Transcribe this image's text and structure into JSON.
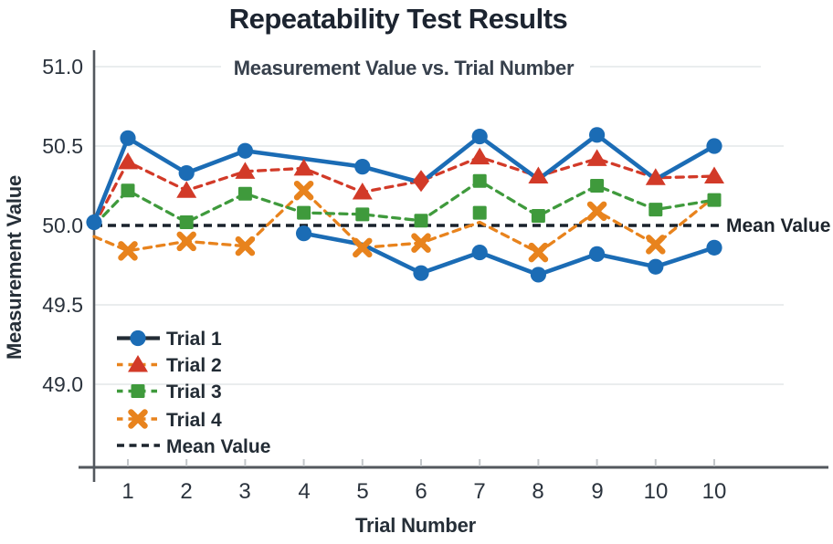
{
  "chart_data": {
    "type": "line",
    "title": "Repeatability Test Results",
    "subtitle": "Measurement Value vs. Trial Number",
    "xlabel": "Trial Number",
    "ylabel": "Measurement Value",
    "x_tick_labels": [
      "1",
      "2",
      "3",
      "4",
      "5",
      "6",
      "7",
      "8",
      "9",
      "10",
      "10"
    ],
    "y_tick_labels": [
      "51.0",
      "50.5",
      "50.0",
      "49.5",
      "49.0"
    ],
    "y_ticks": [
      51.0,
      50.5,
      50.0,
      49.5,
      49.0
    ],
    "ylim": [
      48.75,
      51.05
    ],
    "grid": "horizontal-light",
    "mean_value": 50.0,
    "mean_label": "Mean Value",
    "series": [
      {
        "name": "Trial 4",
        "color": "#e8831d",
        "line": "dashed",
        "marker": "x",
        "points": [
          {
            "x": 0,
            "y": 49.93,
            "marker": false
          },
          {
            "x": 1,
            "y": 49.84
          },
          {
            "x": 2,
            "y": 49.9
          },
          {
            "x": 3,
            "y": 49.87
          },
          {
            "x": 4,
            "y": 50.22
          },
          {
            "x": 5,
            "y": 49.86
          },
          {
            "x": 6,
            "y": 49.89
          },
          {
            "x": 7,
            "y": 50.02,
            "marker": false
          },
          {
            "x": 8,
            "y": 49.83
          },
          {
            "x": 9,
            "y": 50.09
          },
          {
            "x": 10,
            "y": 49.88
          },
          {
            "x": 11,
            "y": 50.18,
            "marker": false
          }
        ]
      },
      {
        "name": "Trial 3",
        "color": "#3f9a3c",
        "line": "dashed",
        "marker": "square",
        "points": [
          {
            "x": 0,
            "y": 50.0,
            "marker": false
          },
          {
            "x": 1,
            "y": 50.22
          },
          {
            "x": 2,
            "y": 50.02
          },
          {
            "x": 3,
            "y": 50.2
          },
          {
            "x": 4,
            "y": 50.08
          },
          {
            "x": 5,
            "y": 50.07
          },
          {
            "x": 6,
            "y": 50.03
          },
          {
            "x": 7,
            "y": 50.28
          },
          {
            "x": 8,
            "y": 50.06
          },
          {
            "x": 9,
            "y": 50.25
          },
          {
            "x": 10,
            "y": 50.1
          },
          {
            "x": 11,
            "y": 50.16
          }
        ]
      },
      {
        "name": "Trial 2",
        "color": "#d23a28",
        "line": "dashed",
        "marker": "triangle",
        "points": [
          {
            "x": 0,
            "y": 50.0,
            "marker": false
          },
          {
            "x": 1,
            "y": 50.4
          },
          {
            "x": 2,
            "y": 50.22
          },
          {
            "x": 3,
            "y": 50.34
          },
          {
            "x": 4,
            "y": 50.36
          },
          {
            "x": 5,
            "y": 50.21
          },
          {
            "x": 6,
            "y": 50.28,
            "marker": "diamond"
          },
          {
            "x": 7,
            "y": 50.43
          },
          {
            "x": 8,
            "y": 50.31
          },
          {
            "x": 9,
            "y": 50.42
          },
          {
            "x": 10,
            "y": 50.3
          },
          {
            "x": 11,
            "y": 50.31
          }
        ]
      },
      {
        "name": "Trial 1 lower",
        "color": "#1b6cb5",
        "line": "solid",
        "marker": "circle",
        "points": [
          {
            "x": 4,
            "y": 49.95
          },
          {
            "x": 5,
            "y": 49.88,
            "marker": false
          },
          {
            "x": 6,
            "y": 49.7
          },
          {
            "x": 7,
            "y": 49.83
          },
          {
            "x": 8,
            "y": 49.69
          },
          {
            "x": 9,
            "y": 49.82
          },
          {
            "x": 10,
            "y": 49.74
          },
          {
            "x": 11,
            "y": 49.86
          }
        ]
      },
      {
        "name": "Trial 1 upper",
        "color": "#1b6cb5",
        "line": "solid",
        "marker": "circle",
        "points": [
          {
            "x": 0,
            "y": 50.02
          },
          {
            "x": 1,
            "y": 50.55
          },
          {
            "x": 2,
            "y": 50.33
          },
          {
            "x": 3,
            "y": 50.47
          },
          {
            "x": 5,
            "y": 50.37
          },
          {
            "x": 6,
            "y": 50.27,
            "marker": false
          },
          {
            "x": 7,
            "y": 50.56
          },
          {
            "x": 8,
            "y": 50.29,
            "marker": false
          },
          {
            "x": 9,
            "y": 50.57
          },
          {
            "x": 10,
            "y": 50.29,
            "marker": false
          },
          {
            "x": 11,
            "y": 50.5
          }
        ]
      }
    ],
    "extra_markers": [
      {
        "x": 7,
        "y": 50.08,
        "color": "#3f9a3c",
        "marker": "square"
      }
    ]
  },
  "legend": {
    "items": [
      {
        "label": "Trial 1",
        "line": "solid",
        "line_color": "#232c35",
        "marker": "circle",
        "marker_color": "#1b6cb5"
      },
      {
        "label": "Trial 2",
        "line": "dashed",
        "line_color": "#e8831d",
        "marker": "triangle",
        "marker_color": "#d23a28"
      },
      {
        "label": "Trial 3",
        "line": "dashed",
        "line_color": "#3f9a3c",
        "marker": "square",
        "marker_color": "#3f9a3c"
      },
      {
        "label": "Trial 4",
        "line": "dashed",
        "line_color": "#e8831d",
        "marker": "x",
        "marker_color": "#e8831d"
      },
      {
        "label": "Mean Value",
        "line": "dashed",
        "line_color": "#1d252e",
        "marker": "none",
        "marker_color": "#1d252e"
      }
    ]
  }
}
